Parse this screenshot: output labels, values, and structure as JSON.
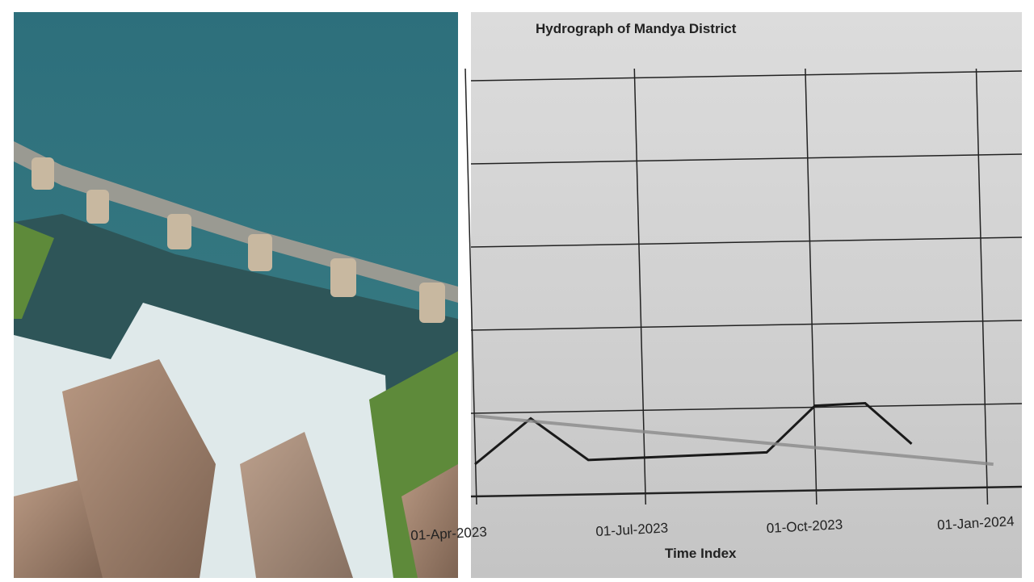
{
  "photo": {
    "subject": "dam-spillway-photo",
    "colors": {
      "water": "#2f6f78",
      "foam": "#e8f0f0",
      "rock": "#a88a78",
      "grass": "#5e8a3a"
    }
  },
  "chart_data": {
    "type": "line",
    "title": "Hydrograph of Mandya District",
    "xlabel": "Time Index",
    "ylabel": "",
    "x_ticks": [
      "01-Apr-2023",
      "01-Jul-2023",
      "01-Oct-2023",
      "01-Jan-2024"
    ],
    "y_tick_labels_visible": false,
    "grid": true,
    "series": [
      {
        "style": "solid-black",
        "points": [
          [
            "2023-04-01",
            0.38
          ],
          [
            "2023-05-01",
            0.92
          ],
          [
            "2023-06-01",
            0.43
          ],
          [
            "2023-09-05",
            0.52
          ],
          [
            "2023-10-01",
            1.07
          ],
          [
            "2023-10-28",
            1.1
          ],
          [
            "2023-11-22",
            0.62
          ]
        ]
      },
      {
        "style": "trend-grey",
        "points": [
          [
            "2023-04-01",
            0.95
          ],
          [
            "2024-01-05",
            0.38
          ]
        ]
      }
    ],
    "colors": {
      "line": "#1a1a1a",
      "trend": "#8a8a8a",
      "grid": "#222222"
    }
  }
}
